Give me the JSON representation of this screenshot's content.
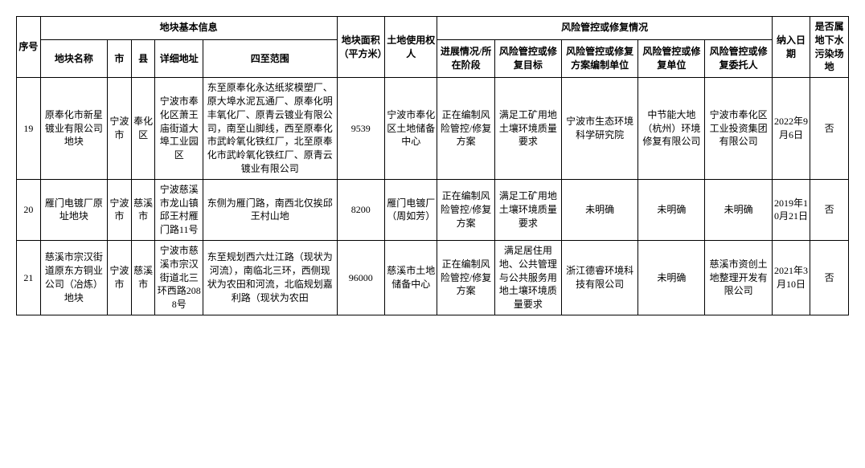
{
  "headers": {
    "group_basic": "地块基本信息",
    "group_risk": "风险管控或修复情况",
    "seq": "序号",
    "name": "地块名称",
    "city": "市",
    "county": "县",
    "addr": "详细地址",
    "bound": "四至范围",
    "area": "地块面积（平方米）",
    "owner": "土地使用权人",
    "progress": "进展情况/所在阶段",
    "target": "风险管控或修复目标",
    "compiler": "风险管控或修复方案编制单位",
    "repairer": "风险管控或修复单位",
    "client": "风险管控或修复委托人",
    "date": "纳入日期",
    "gw": "是否属地下水污染场地"
  },
  "rows": [
    {
      "seq": "19",
      "name": "原奉化市新星镀业有限公司地块",
      "city": "宁波市",
      "county": "奉化区",
      "addr": "宁波市奉化区萧王庙街道大埠工业园区",
      "bound": "东至原奉化永达纸浆模塑厂、原大埠水泥瓦通厂、原奉化明丰氧化厂、原青云镀业有限公司，南至山脚线，西至原奉化市武岭氧化铁红厂，北至原奉化市武岭氧化铁红厂、原青云镀业有限公司",
      "area": "9539",
      "owner": "宁波市奉化区土地储备中心",
      "progress": "正在编制风险管控/修复方案",
      "target": "满足工矿用地土壤环境质量要求",
      "compiler": "宁波市生态环境科学研究院",
      "repairer": "中节能大地（杭州）环境修复有限公司",
      "client": "宁波市奉化区工业投资集团有限公司",
      "date": "2022年9月6日",
      "gw": "否"
    },
    {
      "seq": "20",
      "name": "雁门电镀厂原址地块",
      "city": "宁波市",
      "county": "慈溪市",
      "addr": "宁波慈溪市龙山镇邱王村雁门路11号",
      "bound": "东侧为雁门路，南西北仅挨邱王村山地",
      "area": "8200",
      "owner": "雁门电镀厂（周如芳）",
      "progress": "正在编制风险管控/修复方案",
      "target": "满足工矿用地土壤环境质量要求",
      "compiler": "未明确",
      "repairer": "未明确",
      "client": "未明确",
      "date": "2019年10月21日",
      "gw": "否"
    },
    {
      "seq": "21",
      "name": "慈溪市宗汉街道原东方铜业公司（冶炼）地块",
      "city": "宁波市",
      "county": "慈溪市",
      "addr": "宁波市慈溪市宗汉街道北三环西路2088号",
      "bound": "东至规划西六灶江路（现状为河流），南临北三环，西侧现状为农田和河流，北临规划嘉利路（现状为农田",
      "area": "96000",
      "owner": "慈溪市土地储备中心",
      "progress": "正在编制风险管控/修复方案",
      "target": "满足居住用地、公共管理与公共服务用地土壤环境质量要求",
      "compiler": "浙江德睿环境科技有限公司",
      "repairer": "未明确",
      "client": "慈溪市资创土地整理开发有限公司",
      "date": "2021年3月10日",
      "gw": "否"
    }
  ]
}
